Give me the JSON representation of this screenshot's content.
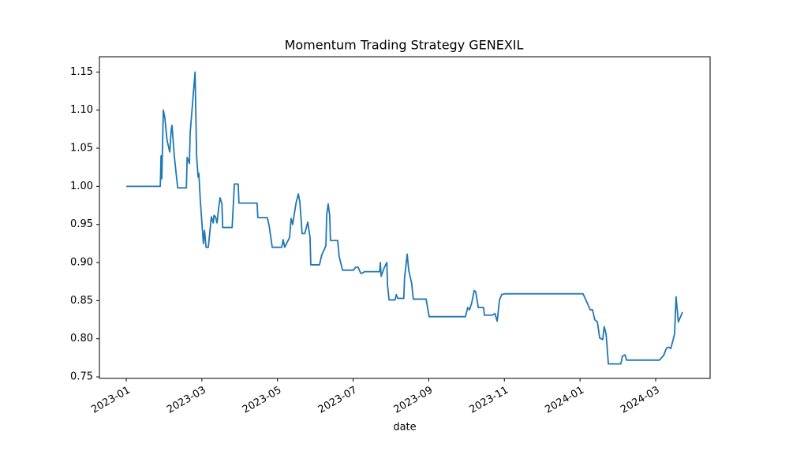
{
  "chart_data": {
    "type": "line",
    "title": "Momentum Trading Strategy GENEXIL",
    "xlabel": "date",
    "color": "#1f77b4",
    "x": [
      0,
      0.9,
      0.92,
      0.94,
      0.98,
      1.02,
      1.08,
      1.15,
      1.19,
      1.21,
      1.27,
      1.36,
      1.59,
      1.61,
      1.67,
      1.69,
      1.82,
      1.86,
      1.9,
      1.92,
      1.96,
      2.04,
      2.07,
      2.11,
      2.17,
      2.25,
      2.3,
      2.32,
      2.36,
      2.4,
      2.44,
      2.48,
      2.53,
      2.55,
      2.8,
      2.86,
      2.96,
      2.98,
      3.46,
      3.48,
      3.73,
      3.78,
      3.86,
      4.11,
      4.15,
      4.19,
      4.32,
      4.36,
      4.4,
      4.49,
      4.55,
      4.59,
      4.65,
      4.72,
      4.8,
      4.86,
      4.88,
      5.11,
      5.17,
      5.28,
      5.3,
      5.34,
      5.38,
      5.4,
      5.59,
      5.63,
      5.72,
      6.01,
      6.07,
      6.13,
      6.2,
      6.24,
      6.3,
      6.7,
      6.72,
      6.74,
      6.82,
      6.89,
      6.91,
      6.95,
      7.11,
      7.14,
      7.18,
      7.34,
      7.36,
      7.43,
      7.47,
      7.55,
      7.59,
      7.93,
      8.01,
      8.97,
      9.03,
      9.08,
      9.14,
      9.2,
      9.24,
      9.31,
      9.45,
      9.47,
      9.68,
      9.75,
      9.81,
      9.87,
      9.93,
      10.02,
      12.08,
      12.19,
      12.27,
      12.33,
      12.39,
      12.46,
      12.52,
      12.6,
      12.64,
      12.69,
      12.75,
      13.08,
      13.12,
      13.19,
      13.23,
      14.1,
      14.21,
      14.29,
      14.35,
      14.4,
      14.5,
      14.54,
      14.6,
      14.71
    ],
    "values": [
      1.0,
      1.0,
      1.04,
      1.01,
      1.1,
      1.09,
      1.06,
      1.045,
      1.075,
      1.08,
      1.04,
      0.998,
      0.998,
      1.038,
      1.03,
      1.07,
      1.15,
      1.04,
      1.012,
      1.017,
      0.98,
      0.925,
      0.942,
      0.92,
      0.92,
      0.96,
      0.952,
      0.962,
      0.96,
      0.952,
      0.97,
      0.985,
      0.977,
      0.946,
      0.946,
      1.003,
      1.003,
      0.978,
      0.978,
      0.959,
      0.959,
      0.948,
      0.92,
      0.92,
      0.93,
      0.92,
      0.933,
      0.958,
      0.95,
      0.978,
      0.99,
      0.98,
      0.938,
      0.938,
      0.953,
      0.933,
      0.897,
      0.897,
      0.91,
      0.922,
      0.962,
      0.977,
      0.962,
      0.929,
      0.929,
      0.908,
      0.89,
      0.89,
      0.894,
      0.894,
      0.886,
      0.886,
      0.888,
      0.888,
      0.9,
      0.882,
      0.893,
      0.9,
      0.87,
      0.851,
      0.851,
      0.858,
      0.853,
      0.853,
      0.88,
      0.911,
      0.89,
      0.872,
      0.852,
      0.852,
      0.829,
      0.829,
      0.841,
      0.838,
      0.848,
      0.863,
      0.862,
      0.841,
      0.841,
      0.831,
      0.831,
      0.833,
      0.823,
      0.851,
      0.858,
      0.859,
      0.859,
      0.847,
      0.838,
      0.838,
      0.825,
      0.822,
      0.801,
      0.799,
      0.816,
      0.806,
      0.767,
      0.767,
      0.777,
      0.779,
      0.772,
      0.772,
      0.778,
      0.788,
      0.789,
      0.787,
      0.806,
      0.855,
      0.822,
      0.835
    ],
    "xlim": [
      -0.71,
      15.44
    ],
    "xticks": [
      {
        "value": 0,
        "label": "2023-01"
      },
      {
        "value": 2,
        "label": "2023-03"
      },
      {
        "value": 4,
        "label": "2023-05"
      },
      {
        "value": 6,
        "label": "2023-07"
      },
      {
        "value": 8,
        "label": "2023-09"
      },
      {
        "value": 10,
        "label": "2023-11"
      },
      {
        "value": 12,
        "label": "2024-01"
      },
      {
        "value": 14,
        "label": "2024-03"
      }
    ],
    "ylim": [
      0.748,
      1.17
    ],
    "yticks": [
      0.75,
      {
        "value": 0.8,
        "label": "0.80"
      },
      0.85,
      {
        "value": 0.9,
        "label": "0.90"
      },
      0.95,
      {
        "value": 1.0,
        "label": "1.00"
      },
      1.05,
      {
        "value": 1.1,
        "label": "1.10"
      },
      1.15
    ],
    "grid": false
  }
}
